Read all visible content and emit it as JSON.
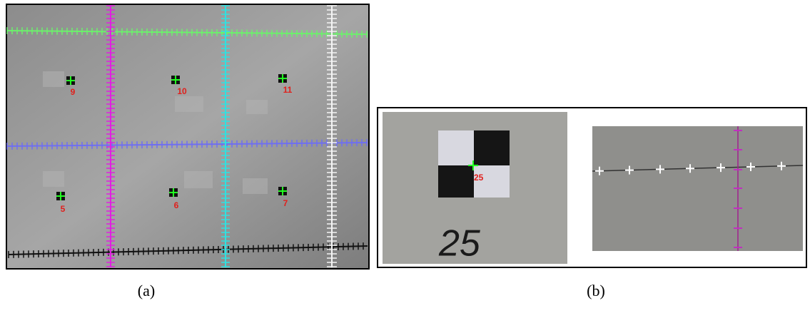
{
  "panel_a": {
    "caption": "(a)",
    "markers": [
      {
        "label": "9"
      },
      {
        "label": "10"
      },
      {
        "label": "11"
      },
      {
        "label": "5"
      },
      {
        "label": "6"
      },
      {
        "label": "7"
      }
    ]
  },
  "panel_b": {
    "caption": "(b)",
    "marker_label": "25",
    "handwritten": "25"
  }
}
